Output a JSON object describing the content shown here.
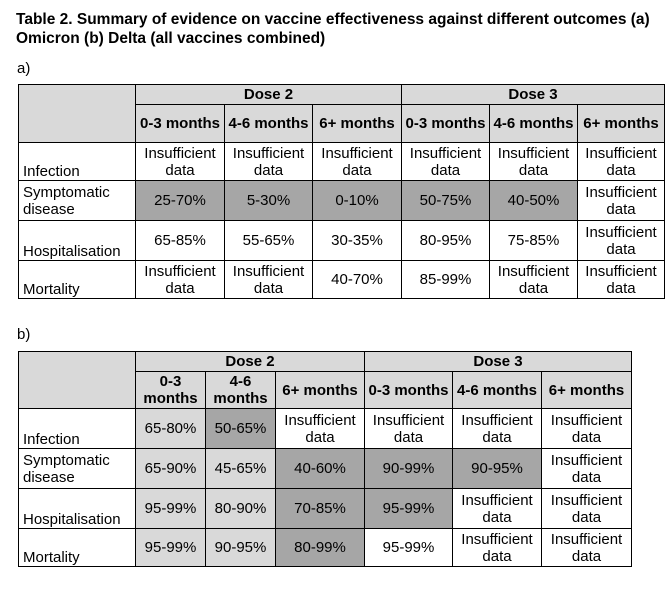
{
  "title": "Table 2. Summary of evidence on vaccine effectiveness against different outcomes (a) Omicron (b) Delta (all vaccines combined)",
  "tables": [
    {
      "label": "a)",
      "groups": [
        "Dose 2",
        "Dose 3"
      ],
      "cols": [
        "0-3 months",
        "4-6 months",
        "6+ months",
        "0-3 months",
        "4-6 months",
        "6+ months"
      ],
      "rows": [
        {
          "label": "Infection",
          "cells": [
            "Insufficient data",
            "Insufficient data",
            "Insufficient data",
            "Insufficient data",
            "Insufficient data",
            "Insufficient data"
          ],
          "shade": [
            "wh",
            "wh",
            "wh",
            "wh",
            "wh",
            "wh"
          ]
        },
        {
          "label": "Symptomatic disease",
          "cells": [
            "25-70%",
            "5-30%",
            "0-10%",
            "50-75%",
            "40-50%",
            "Insufficient data"
          ],
          "shade": [
            "dg",
            "dg",
            "dg",
            "dg",
            "dg",
            "wh"
          ]
        },
        {
          "label": "Hospitalisation",
          "cells": [
            "65-85%",
            "55-65%",
            "30-35%",
            "80-95%",
            "75-85%",
            "Insufficient data"
          ],
          "shade": [
            "wh",
            "wh",
            "wh",
            "wh",
            "wh",
            "wh"
          ]
        },
        {
          "label": "Mortality",
          "cells": [
            "Insufficient data",
            "Insufficient data",
            "40-70%",
            "85-99%",
            "Insufficient data",
            "Insufficient data"
          ],
          "shade": [
            "wh",
            "wh",
            "wh",
            "wh",
            "wh",
            "wh"
          ]
        }
      ]
    },
    {
      "label": "b)",
      "groups": [
        "Dose 2",
        "Dose 3"
      ],
      "cols": [
        "0-3 months",
        "4-6 months",
        "6+ months",
        "0-3 months",
        "4-6 months",
        "6+ months"
      ],
      "rows": [
        {
          "label": "Infection",
          "cells": [
            "65-80%",
            "50-65%",
            "Insufficient data",
            "Insufficient data",
            "Insufficient data",
            "Insufficient data"
          ],
          "shade": [
            "lg",
            "dg",
            "wh",
            "wh",
            "wh",
            "wh"
          ]
        },
        {
          "label": "Symptomatic disease",
          "cells": [
            "65-90%",
            "45-65%",
            "40-60%",
            "90-99%",
            "90-95%",
            "Insufficient data"
          ],
          "shade": [
            "lg",
            "lg",
            "dg",
            "dg",
            "dg",
            "wh"
          ]
        },
        {
          "label": "Hospitalisation",
          "cells": [
            "95-99%",
            "80-90%",
            "70-85%",
            "95-99%",
            "Insufficient data",
            "Insufficient data"
          ],
          "shade": [
            "lg",
            "lg",
            "dg",
            "dg",
            "wh",
            "wh"
          ]
        },
        {
          "label": "Mortality",
          "cells": [
            "95-99%",
            "90-95%",
            "80-99%",
            "95-99%",
            "Insufficient data",
            "Insufficient data"
          ],
          "shade": [
            "lg",
            "lg",
            "dg",
            "wh",
            "wh",
            "wh"
          ]
        }
      ]
    }
  ],
  "colors": {
    "header": "#d9d9d9",
    "light": "#d9d9d9",
    "dark": "#a6a6a6"
  }
}
